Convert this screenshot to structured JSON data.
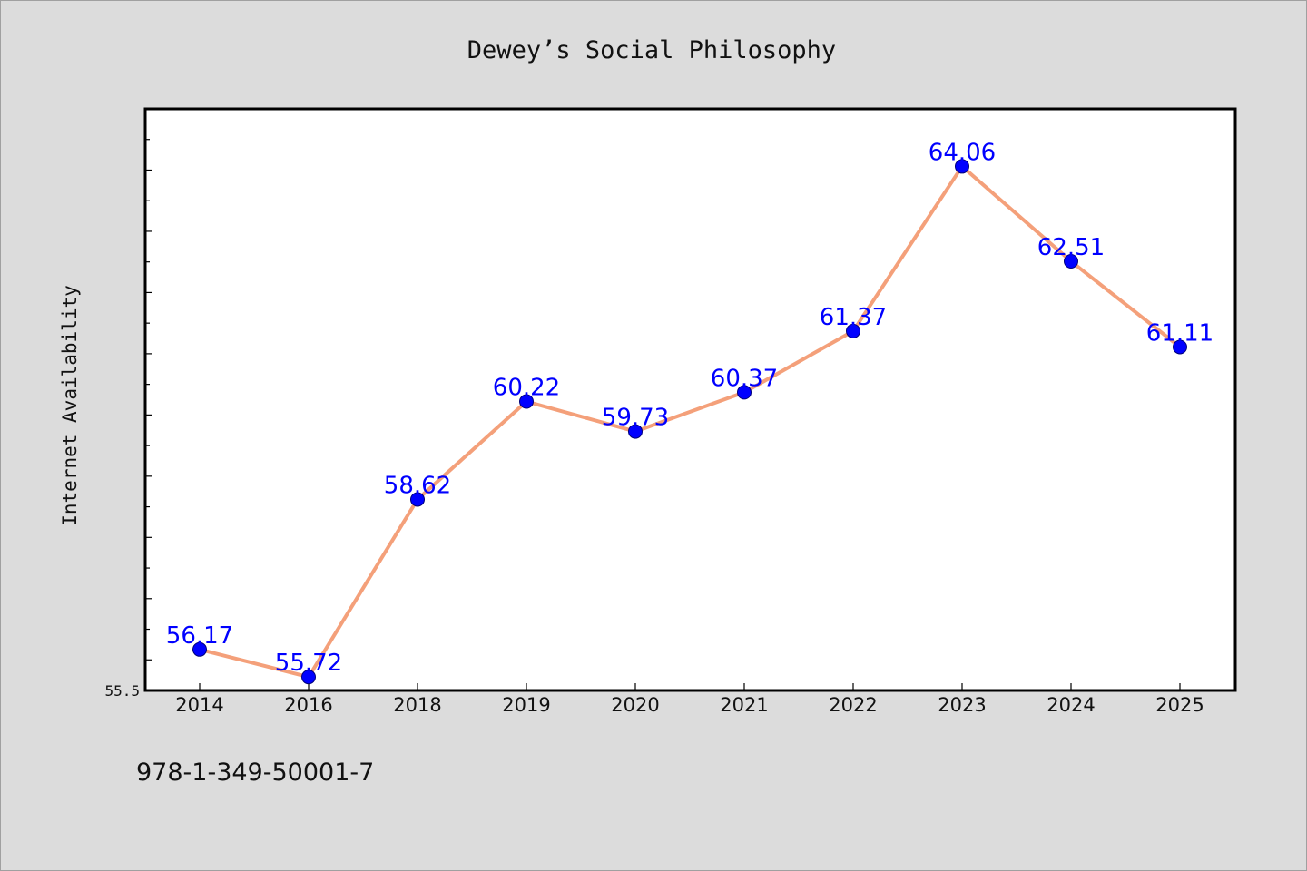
{
  "chart_data": {
    "type": "line",
    "title": "Dewey’s Social Philosophy",
    "xlabel": "",
    "ylabel": "Internet Availability",
    "categories": [
      "2014",
      "2016",
      "2018",
      "2019",
      "2020",
      "2021",
      "2022",
      "2023",
      "2024",
      "2025"
    ],
    "series": [
      {
        "values": [
          56.17,
          55.72,
          58.62,
          60.22,
          59.73,
          60.37,
          61.37,
          64.06,
          62.51,
          61.11
        ],
        "labels": [
          "56.17",
          "55.72",
          "58.62",
          "60.22",
          "59.73",
          "60.37",
          "61.37",
          "64.06",
          "62.51",
          "61.11"
        ]
      }
    ],
    "ylim": [
      55.5,
      65.0
    ],
    "ytick_labels": [
      "55.5"
    ],
    "grid": false,
    "legend": "none",
    "colors": {
      "line": "#f4a07a",
      "marker": "#0000ff",
      "label": "#0000ff",
      "background": "#dcdcdc",
      "plot_background": "#ffffff"
    }
  },
  "footer": {
    "isbn": "978-1-349-50001-7"
  }
}
